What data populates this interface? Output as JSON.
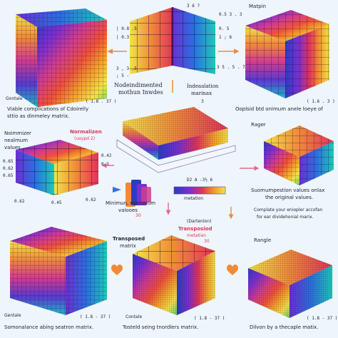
{
  "palette": {
    "background": "#eef5fb",
    "label_text": "#1d2236",
    "accent_red": "#e0335a",
    "arrow_orange": "#f08a3a",
    "arrow_pink": "#e06a8a",
    "rainbow": [
      "#2b3cc4",
      "#7a2fd0",
      "#d13b8f",
      "#f0503a",
      "#f5a02a",
      "#f3e24a",
      "#5dcf6a",
      "#1fb8c9",
      "#3a6fe0"
    ]
  },
  "icons": [
    "heart-icon",
    "document-stack-icon",
    "arrow-icon"
  ],
  "top": {
    "center_numbers_a": "| 0.8 .5",
    "center_numbers_b": "| 0.3",
    "center_numbers_c": "3 , 3 ,5",
    "center_numbers_d": "; 5 -",
    "matrix_top_labels": "3   6  ?",
    "right_mapping_label": "Matpin",
    "right_numbers_a": "0.5   3 . 3",
    "right_numbers_b": "0. 5",
    "right_numbers_c": "1 ; 6",
    "right_numbers_d": "3 5 . 5 . 7",
    "left_corner_label": "Gontale",
    "small_range_left": "( 1.8 . 37 )",
    "small_range_right": "( 1.6 . 3 )"
  },
  "middle": {
    "nondimension_title_a": "Nodeindimented",
    "nondimension_title_b": "mothun Inwdes",
    "indexation_a": "Indeaalation",
    "indexation_b": "marinax",
    "indexation_num": "3",
    "left_desc_a": "Viable complications of Cdoirelly",
    "left_desc_b": "sttio as dinmeley matrix.",
    "right_desc": "Ooplsid btd onimum anele loeye of",
    "normalizer_a": "Noimmizer",
    "normalizer_b": "nealmum",
    "normalizer_c": "values",
    "normalizen_red": "Normalizen",
    "normalizen_sub": "(uaypd 2)",
    "left_vals_a": "0.65",
    "left_vals_b": "0.62",
    "left_vals_c": "0.65",
    "left_vals_d": "0.42",
    "left_vals_e": "0.3",
    "bottom_vals_left": "0.62",
    "bottom_vals_mid": "0.45",
    "bottom_vals_right": "0.62",
    "ranger_label": "Rager",
    "summary_a": "Suomumpestion values onlax",
    "summary_b": "the original values.",
    "complete_a": "Complate your eniopler accofan",
    "complete_b": "for ear dividehonial marix.",
    "minimum_a": "Minimun, mimimum",
    "minimum_b": "valooes",
    "gradient_nums": "D2   A  -3½   6",
    "gradient_caption": "metation",
    "transposed_red": "Transposiod",
    "transposed_red_sub": "metatian",
    "transposed_small": "(Dartenlon)",
    "small_red_num": "30",
    "small_red_num_b": "30"
  },
  "bottom": {
    "transposed_label_a": "Transposed",
    "transposed_label_b": "matrix",
    "range_label": "Rangle",
    "left_caption": "Somonalance abing seatron matrix.",
    "center_caption": "Tosteld seing tnordlers matrix.",
    "right_caption": "Dilvon by a thecaple matix.",
    "corner_left": "Gentale",
    "corner_left_range": "( 1.8 - 37 )",
    "center_corner": "Contale",
    "center_range": "( 1.8 - 37 )",
    "right_range": "( 1.8 - 37 )"
  }
}
